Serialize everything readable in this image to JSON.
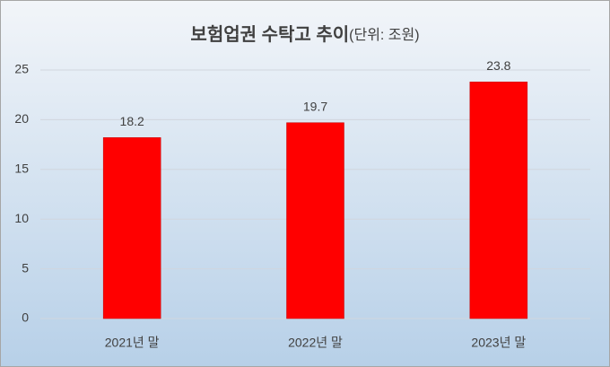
{
  "chart_data": {
    "type": "bar",
    "title": "보험업권 수탁고 추이",
    "unit": "(단위: 조원)",
    "categories": [
      "2021년 말",
      "2022년 말",
      "2023년 말"
    ],
    "values": [
      18.2,
      19.7,
      23.8
    ],
    "color": "#ff0000",
    "ylim": [
      0,
      25
    ],
    "yticks": [
      0,
      5,
      10,
      15,
      20,
      25
    ],
    "grid": true
  }
}
